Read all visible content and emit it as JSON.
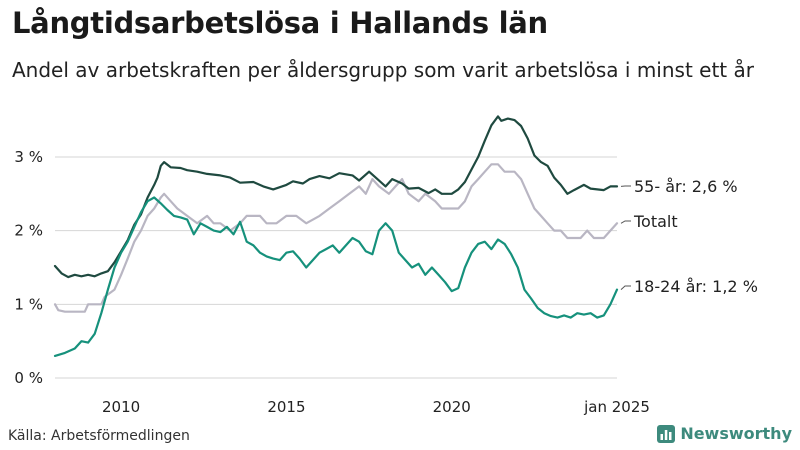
{
  "header": {
    "title": "Långtidsarbetslösa i Hallands län",
    "subtitle": "Andel av arbetskraften per åldersgrupp som varit arbetslösa i minst ett år"
  },
  "footer": {
    "source": "Källa: Arbetsförmedlingen",
    "brand": "Newsworthy"
  },
  "colors": {
    "s55": "#1f4a40",
    "total": "#b9b6c3",
    "s1824": "#16917c",
    "grid": "#d6d6d6",
    "brand": "#3d8a7d"
  },
  "chart_data": {
    "type": "line",
    "title": "Långtidsarbetslösa i Hallands län",
    "subtitle": "Andel av arbetskraften per åldersgrupp som varit arbetslösa i minst ett år",
    "xlabel": "",
    "ylabel": "",
    "x_range": [
      2008.0,
      2025.0
    ],
    "ylim": [
      0,
      3.8
    ],
    "y_ticks": [
      0,
      1,
      2,
      3
    ],
    "y_tick_labels": [
      "0 %",
      "1 %",
      "2 %",
      "3 %"
    ],
    "x_ticks": [
      2010,
      2015,
      2020,
      2025
    ],
    "x_tick_labels": [
      "2010",
      "2015",
      "2020",
      "jan 2025"
    ],
    "grid": true,
    "legend": "end-of-line labels",
    "series": [
      {
        "name": "55- år",
        "end_label": "55- år: 2,6 %",
        "color": "#1f4a40",
        "points": [
          [
            2008.0,
            1.52
          ],
          [
            2008.2,
            1.42
          ],
          [
            2008.4,
            1.37
          ],
          [
            2008.6,
            1.4
          ],
          [
            2008.8,
            1.38
          ],
          [
            2009.0,
            1.4
          ],
          [
            2009.2,
            1.38
          ],
          [
            2009.4,
            1.42
          ],
          [
            2009.6,
            1.45
          ],
          [
            2009.8,
            1.57
          ],
          [
            2010.0,
            1.72
          ],
          [
            2010.2,
            1.87
          ],
          [
            2010.4,
            2.08
          ],
          [
            2010.6,
            2.22
          ],
          [
            2010.8,
            2.45
          ],
          [
            2011.0,
            2.62
          ],
          [
            2011.1,
            2.72
          ],
          [
            2011.2,
            2.88
          ],
          [
            2011.3,
            2.93
          ],
          [
            2011.5,
            2.86
          ],
          [
            2011.8,
            2.85
          ],
          [
            2012.0,
            2.82
          ],
          [
            2012.3,
            2.8
          ],
          [
            2012.6,
            2.77
          ],
          [
            2013.0,
            2.75
          ],
          [
            2013.3,
            2.72
          ],
          [
            2013.6,
            2.65
          ],
          [
            2014.0,
            2.66
          ],
          [
            2014.3,
            2.6
          ],
          [
            2014.6,
            2.56
          ],
          [
            2015.0,
            2.62
          ],
          [
            2015.2,
            2.67
          ],
          [
            2015.5,
            2.64
          ],
          [
            2015.7,
            2.7
          ],
          [
            2016.0,
            2.74
          ],
          [
            2016.3,
            2.71
          ],
          [
            2016.6,
            2.78
          ],
          [
            2017.0,
            2.75
          ],
          [
            2017.2,
            2.68
          ],
          [
            2017.5,
            2.8
          ],
          [
            2017.7,
            2.72
          ],
          [
            2018.0,
            2.6
          ],
          [
            2018.2,
            2.7
          ],
          [
            2018.5,
            2.64
          ],
          [
            2018.7,
            2.57
          ],
          [
            2019.0,
            2.58
          ],
          [
            2019.3,
            2.51
          ],
          [
            2019.5,
            2.56
          ],
          [
            2019.7,
            2.5
          ],
          [
            2020.0,
            2.5
          ],
          [
            2020.2,
            2.56
          ],
          [
            2020.4,
            2.66
          ],
          [
            2020.6,
            2.83
          ],
          [
            2020.8,
            3.0
          ],
          [
            2021.0,
            3.22
          ],
          [
            2021.2,
            3.43
          ],
          [
            2021.4,
            3.55
          ],
          [
            2021.5,
            3.49
          ],
          [
            2021.7,
            3.52
          ],
          [
            2021.9,
            3.5
          ],
          [
            2022.1,
            3.42
          ],
          [
            2022.3,
            3.25
          ],
          [
            2022.5,
            3.02
          ],
          [
            2022.7,
            2.93
          ],
          [
            2022.9,
            2.88
          ],
          [
            2023.1,
            2.72
          ],
          [
            2023.3,
            2.62
          ],
          [
            2023.5,
            2.5
          ],
          [
            2023.7,
            2.55
          ],
          [
            2024.0,
            2.62
          ],
          [
            2024.2,
            2.57
          ],
          [
            2024.4,
            2.56
          ],
          [
            2024.6,
            2.55
          ],
          [
            2024.8,
            2.6
          ],
          [
            2025.0,
            2.6
          ]
        ]
      },
      {
        "name": "Totalt",
        "end_label": "Totalt",
        "color": "#b9b6c3",
        "points": [
          [
            2008.0,
            1.0
          ],
          [
            2008.1,
            0.92
          ],
          [
            2008.3,
            0.9
          ],
          [
            2008.9,
            0.9
          ],
          [
            2009.0,
            1.0
          ],
          [
            2009.4,
            1.0
          ],
          [
            2009.5,
            1.1
          ],
          [
            2009.8,
            1.2
          ],
          [
            2010.0,
            1.4
          ],
          [
            2010.2,
            1.62
          ],
          [
            2010.4,
            1.85
          ],
          [
            2010.6,
            2.0
          ],
          [
            2010.8,
            2.2
          ],
          [
            2011.0,
            2.3
          ],
          [
            2011.2,
            2.45
          ],
          [
            2011.3,
            2.5
          ],
          [
            2011.5,
            2.4
          ],
          [
            2011.7,
            2.3
          ],
          [
            2012.0,
            2.2
          ],
          [
            2012.3,
            2.1
          ],
          [
            2012.6,
            2.2
          ],
          [
            2012.8,
            2.1
          ],
          [
            2013.0,
            2.1
          ],
          [
            2013.3,
            2.0
          ],
          [
            2013.6,
            2.1
          ],
          [
            2013.8,
            2.2
          ],
          [
            2014.2,
            2.2
          ],
          [
            2014.4,
            2.1
          ],
          [
            2014.7,
            2.1
          ],
          [
            2015.0,
            2.2
          ],
          [
            2015.3,
            2.2
          ],
          [
            2015.6,
            2.1
          ],
          [
            2016.0,
            2.2
          ],
          [
            2016.3,
            2.3
          ],
          [
            2016.6,
            2.4
          ],
          [
            2016.9,
            2.5
          ],
          [
            2017.2,
            2.6
          ],
          [
            2017.4,
            2.5
          ],
          [
            2017.6,
            2.7
          ],
          [
            2017.8,
            2.6
          ],
          [
            2018.1,
            2.5
          ],
          [
            2018.3,
            2.6
          ],
          [
            2018.5,
            2.7
          ],
          [
            2018.7,
            2.5
          ],
          [
            2019.0,
            2.4
          ],
          [
            2019.2,
            2.5
          ],
          [
            2019.5,
            2.4
          ],
          [
            2019.7,
            2.3
          ],
          [
            2020.0,
            2.3
          ],
          [
            2020.2,
            2.3
          ],
          [
            2020.4,
            2.4
          ],
          [
            2020.6,
            2.6
          ],
          [
            2020.8,
            2.7
          ],
          [
            2021.0,
            2.8
          ],
          [
            2021.2,
            2.9
          ],
          [
            2021.4,
            2.9
          ],
          [
            2021.6,
            2.8
          ],
          [
            2021.9,
            2.8
          ],
          [
            2022.1,
            2.7
          ],
          [
            2022.3,
            2.5
          ],
          [
            2022.5,
            2.3
          ],
          [
            2022.7,
            2.2
          ],
          [
            2022.9,
            2.1
          ],
          [
            2023.1,
            2.0
          ],
          [
            2023.3,
            2.0
          ],
          [
            2023.5,
            1.9
          ],
          [
            2023.9,
            1.9
          ],
          [
            2024.1,
            2.0
          ],
          [
            2024.3,
            1.9
          ],
          [
            2024.6,
            1.9
          ],
          [
            2024.8,
            2.0
          ],
          [
            2025.0,
            2.1
          ]
        ]
      },
      {
        "name": "18-24 år",
        "end_label": "18-24 år: 1,2 %",
        "color": "#16917c",
        "points": [
          [
            2008.0,
            0.3
          ],
          [
            2008.3,
            0.34
          ],
          [
            2008.6,
            0.4
          ],
          [
            2008.8,
            0.5
          ],
          [
            2009.0,
            0.48
          ],
          [
            2009.2,
            0.6
          ],
          [
            2009.4,
            0.88
          ],
          [
            2009.6,
            1.2
          ],
          [
            2009.8,
            1.5
          ],
          [
            2010.0,
            1.7
          ],
          [
            2010.2,
            1.85
          ],
          [
            2010.4,
            2.05
          ],
          [
            2010.6,
            2.25
          ],
          [
            2010.8,
            2.4
          ],
          [
            2011.0,
            2.45
          ],
          [
            2011.2,
            2.37
          ],
          [
            2011.4,
            2.28
          ],
          [
            2011.6,
            2.2
          ],
          [
            2011.8,
            2.18
          ],
          [
            2012.0,
            2.15
          ],
          [
            2012.2,
            1.95
          ],
          [
            2012.4,
            2.1
          ],
          [
            2012.6,
            2.05
          ],
          [
            2012.8,
            2.0
          ],
          [
            2013.0,
            1.98
          ],
          [
            2013.2,
            2.05
          ],
          [
            2013.4,
            1.95
          ],
          [
            2013.6,
            2.12
          ],
          [
            2013.8,
            1.85
          ],
          [
            2014.0,
            1.8
          ],
          [
            2014.2,
            1.7
          ],
          [
            2014.4,
            1.65
          ],
          [
            2014.6,
            1.62
          ],
          [
            2014.8,
            1.6
          ],
          [
            2015.0,
            1.7
          ],
          [
            2015.2,
            1.72
          ],
          [
            2015.4,
            1.62
          ],
          [
            2015.6,
            1.5
          ],
          [
            2016.0,
            1.7
          ],
          [
            2016.2,
            1.75
          ],
          [
            2016.4,
            1.8
          ],
          [
            2016.6,
            1.7
          ],
          [
            2016.8,
            1.8
          ],
          [
            2017.0,
            1.9
          ],
          [
            2017.2,
            1.85
          ],
          [
            2017.4,
            1.72
          ],
          [
            2017.6,
            1.68
          ],
          [
            2017.8,
            2.0
          ],
          [
            2018.0,
            2.1
          ],
          [
            2018.2,
            2.0
          ],
          [
            2018.4,
            1.7
          ],
          [
            2018.6,
            1.6
          ],
          [
            2018.8,
            1.5
          ],
          [
            2019.0,
            1.55
          ],
          [
            2019.2,
            1.4
          ],
          [
            2019.4,
            1.5
          ],
          [
            2019.6,
            1.4
          ],
          [
            2019.8,
            1.3
          ],
          [
            2020.0,
            1.18
          ],
          [
            2020.2,
            1.22
          ],
          [
            2020.4,
            1.5
          ],
          [
            2020.6,
            1.7
          ],
          [
            2020.8,
            1.82
          ],
          [
            2021.0,
            1.85
          ],
          [
            2021.2,
            1.75
          ],
          [
            2021.4,
            1.88
          ],
          [
            2021.6,
            1.82
          ],
          [
            2021.8,
            1.68
          ],
          [
            2022.0,
            1.5
          ],
          [
            2022.2,
            1.2
          ],
          [
            2022.4,
            1.08
          ],
          [
            2022.6,
            0.95
          ],
          [
            2022.8,
            0.88
          ],
          [
            2023.0,
            0.84
          ],
          [
            2023.2,
            0.82
          ],
          [
            2023.4,
            0.85
          ],
          [
            2023.6,
            0.82
          ],
          [
            2023.8,
            0.88
          ],
          [
            2024.0,
            0.86
          ],
          [
            2024.2,
            0.88
          ],
          [
            2024.4,
            0.82
          ],
          [
            2024.6,
            0.85
          ],
          [
            2024.8,
            1.0
          ],
          [
            2025.0,
            1.2
          ]
        ]
      }
    ]
  }
}
